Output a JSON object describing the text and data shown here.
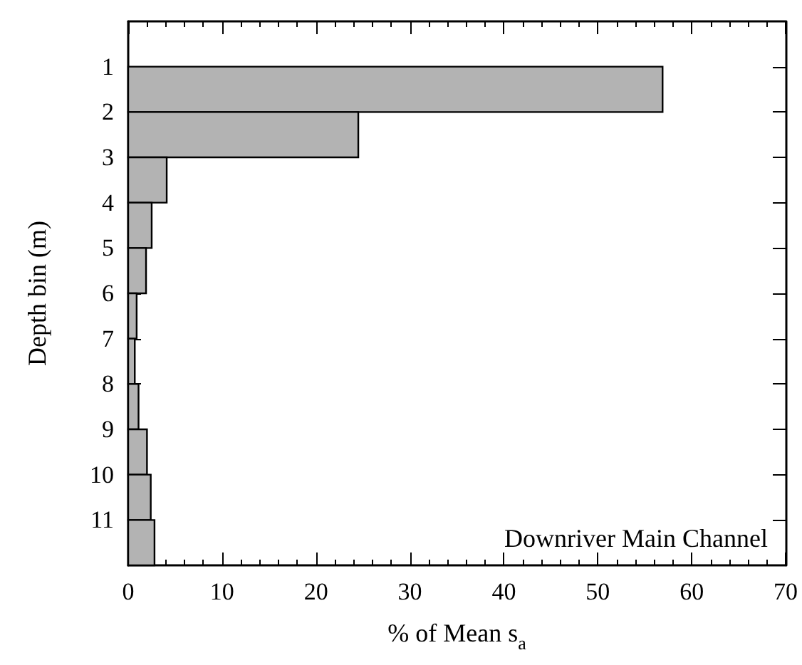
{
  "chart_data": {
    "type": "histogram",
    "orientation": "horizontal",
    "xlabel": "% of Mean s$_{a}$",
    "ylabel": "Depth bin (m)",
    "bins": [
      1,
      2,
      3,
      4,
      5,
      6,
      7,
      8,
      9,
      10,
      11,
      12
    ],
    "values": [
      56.9,
      24.5,
      4.1,
      2.5,
      1.9,
      0.9,
      0.7,
      1.1,
      2.0,
      2.4,
      2.8
    ],
    "color": "#b3b3b3",
    "xlim": [
      0,
      70
    ],
    "xticks": [
      0,
      10,
      20,
      30,
      40,
      50,
      60,
      70
    ],
    "ylim": [
      12,
      0
    ],
    "yticks": [
      1,
      2,
      3,
      4,
      5,
      6,
      7,
      8,
      9,
      10,
      11
    ],
    "annotations": [
      "Downriver Main Channel"
    ]
  }
}
